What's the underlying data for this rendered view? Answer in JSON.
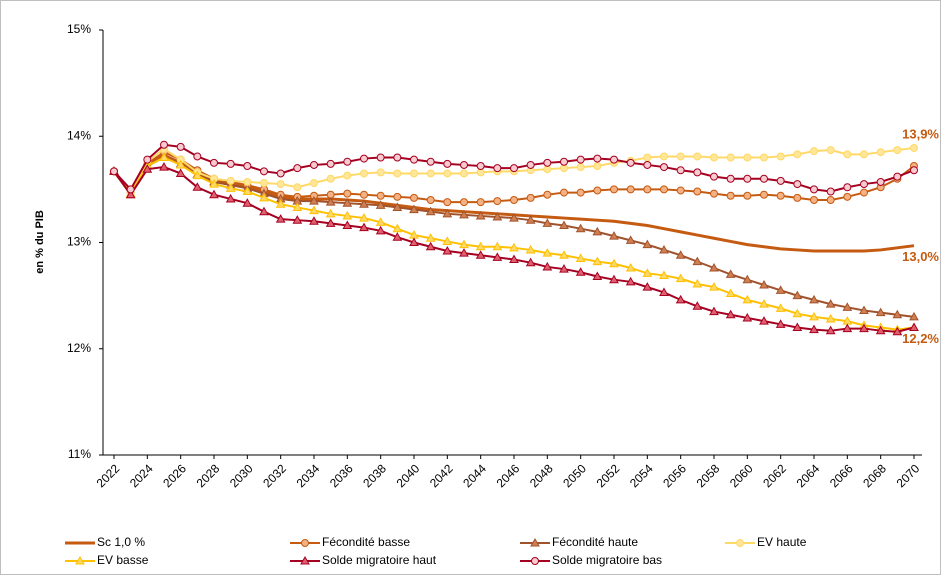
{
  "chart_data": {
    "type": "line",
    "y_label": "en % du PIB",
    "x": [
      2022,
      2023,
      2024,
      2025,
      2026,
      2027,
      2028,
      2029,
      2030,
      2031,
      2032,
      2033,
      2034,
      2035,
      2036,
      2037,
      2038,
      2039,
      2040,
      2041,
      2042,
      2043,
      2044,
      2045,
      2046,
      2047,
      2048,
      2049,
      2050,
      2051,
      2052,
      2053,
      2054,
      2055,
      2056,
      2057,
      2058,
      2059,
      2060,
      2061,
      2062,
      2063,
      2064,
      2065,
      2066,
      2067,
      2068,
      2069,
      2070
    ],
    "xlim": [
      2022,
      2070
    ],
    "xticks": [
      2022,
      2024,
      2026,
      2028,
      2030,
      2032,
      2034,
      2036,
      2038,
      2040,
      2042,
      2044,
      2046,
      2048,
      2050,
      2052,
      2054,
      2056,
      2058,
      2060,
      2062,
      2064,
      2066,
      2068,
      2070
    ],
    "ylim": [
      11,
      15
    ],
    "yticks": [
      {
        "value": 11,
        "label": "11%"
      },
      {
        "value": 12,
        "label": "12%"
      },
      {
        "value": 13,
        "label": "13%"
      },
      {
        "value": 14,
        "label": "14%"
      },
      {
        "value": 15,
        "label": "15%"
      }
    ],
    "grid": false,
    "legend": "bottom",
    "series": [
      {
        "name": "Sc 1,0 %",
        "color": "#C55A11",
        "marker": "none",
        "marker_fill": "#C55A11",
        "values": [
          13.67,
          13.47,
          13.72,
          13.82,
          13.75,
          13.65,
          13.58,
          13.55,
          13.52,
          13.48,
          13.43,
          13.41,
          13.41,
          13.41,
          13.4,
          13.39,
          13.37,
          13.35,
          13.33,
          13.31,
          13.3,
          13.29,
          13.28,
          13.27,
          13.26,
          13.25,
          13.24,
          13.23,
          13.22,
          13.21,
          13.2,
          13.18,
          13.16,
          13.13,
          13.1,
          13.07,
          13.04,
          13.01,
          12.98,
          12.96,
          12.94,
          12.93,
          12.92,
          12.92,
          12.92,
          12.92,
          12.93,
          12.95,
          12.97
        ],
        "value_labels": [
          null,
          null,
          null,
          null,
          null,
          null,
          null,
          null,
          null,
          null,
          null,
          null,
          null,
          null,
          null,
          null,
          null,
          null,
          null,
          null,
          null,
          null,
          null,
          null,
          null,
          null,
          null,
          null,
          null,
          null,
          null,
          null,
          null,
          null,
          null,
          null,
          null,
          null,
          null,
          null,
          null,
          null,
          null,
          null,
          null,
          null,
          null,
          null,
          "13,0%"
        ]
      },
      {
        "name": "Fécondité basse",
        "color": "#C55A11",
        "marker": "circle",
        "marker_fill": "#F4B183",
        "values": [
          13.67,
          13.47,
          13.74,
          13.85,
          13.78,
          13.68,
          13.6,
          13.57,
          13.54,
          13.5,
          13.45,
          13.43,
          13.44,
          13.45,
          13.46,
          13.45,
          13.44,
          13.43,
          13.42,
          13.4,
          13.38,
          13.38,
          13.38,
          13.39,
          13.4,
          13.42,
          13.45,
          13.47,
          13.47,
          13.49,
          13.5,
          13.5,
          13.5,
          13.5,
          13.49,
          13.48,
          13.46,
          13.44,
          13.44,
          13.45,
          13.44,
          13.42,
          13.4,
          13.4,
          13.43,
          13.47,
          13.52,
          13.6,
          13.72
        ]
      },
      {
        "name": "Fécondité haute",
        "color": "#A0522D",
        "marker": "triangle",
        "marker_fill": "#D08050",
        "values": [
          13.67,
          13.45,
          13.72,
          13.8,
          13.74,
          13.64,
          13.57,
          13.54,
          13.51,
          13.46,
          13.41,
          13.39,
          13.39,
          13.38,
          13.37,
          13.36,
          13.35,
          13.33,
          13.31,
          13.29,
          13.27,
          13.26,
          13.25,
          13.24,
          13.23,
          13.21,
          13.18,
          13.16,
          13.13,
          13.1,
          13.06,
          13.02,
          12.98,
          12.93,
          12.88,
          12.82,
          12.76,
          12.7,
          12.65,
          12.6,
          12.55,
          12.5,
          12.46,
          12.42,
          12.39,
          12.36,
          12.34,
          12.32,
          12.3
        ]
      },
      {
        "name": "EV haute",
        "color": "#FFD966",
        "marker": "circle",
        "marker_fill": "#FFE699",
        "values": [
          13.67,
          13.47,
          13.76,
          13.88,
          13.78,
          13.66,
          13.6,
          13.58,
          13.57,
          13.56,
          13.55,
          13.52,
          13.56,
          13.6,
          13.63,
          13.65,
          13.66,
          13.65,
          13.65,
          13.65,
          13.65,
          13.65,
          13.66,
          13.67,
          13.67,
          13.68,
          13.69,
          13.7,
          13.71,
          13.72,
          13.75,
          13.77,
          13.8,
          13.81,
          13.81,
          13.81,
          13.8,
          13.8,
          13.8,
          13.8,
          13.81,
          13.83,
          13.86,
          13.87,
          13.83,
          13.83,
          13.85,
          13.87,
          13.89
        ],
        "value_labels": [
          null,
          null,
          null,
          null,
          null,
          null,
          null,
          null,
          null,
          null,
          null,
          null,
          null,
          null,
          null,
          null,
          null,
          null,
          null,
          null,
          null,
          null,
          null,
          null,
          null,
          null,
          null,
          null,
          null,
          null,
          null,
          null,
          null,
          null,
          null,
          null,
          null,
          null,
          null,
          null,
          null,
          null,
          null,
          null,
          null,
          null,
          null,
          null,
          "13,9%"
        ]
      },
      {
        "name": "EV basse",
        "color": "#FFC000",
        "marker": "triangle",
        "marker_fill": "#FFD966",
        "values": [
          13.67,
          13.46,
          13.72,
          13.8,
          13.73,
          13.63,
          13.55,
          13.51,
          13.48,
          13.42,
          13.36,
          13.33,
          13.3,
          13.27,
          13.25,
          13.23,
          13.19,
          13.13,
          13.07,
          13.04,
          13.01,
          12.98,
          12.96,
          12.96,
          12.95,
          12.93,
          12.9,
          12.88,
          12.85,
          12.82,
          12.8,
          12.76,
          12.71,
          12.69,
          12.66,
          12.61,
          12.58,
          12.52,
          12.46,
          12.42,
          12.38,
          12.33,
          12.3,
          12.28,
          12.26,
          12.22,
          12.2,
          12.18,
          12.2
        ],
        "value_labels": [
          null,
          null,
          null,
          null,
          null,
          null,
          null,
          null,
          null,
          null,
          null,
          null,
          null,
          null,
          null,
          null,
          null,
          null,
          null,
          null,
          null,
          null,
          null,
          null,
          null,
          null,
          null,
          null,
          null,
          null,
          null,
          null,
          null,
          null,
          null,
          null,
          null,
          null,
          null,
          null,
          null,
          null,
          null,
          null,
          null,
          null,
          null,
          null,
          "12,2%"
        ]
      },
      {
        "name": "Solde migratoire haut",
        "color": "#A50021",
        "marker": "triangle",
        "marker_fill": "#E06070",
        "values": [
          13.67,
          13.45,
          13.69,
          13.71,
          13.65,
          13.52,
          13.45,
          13.41,
          13.37,
          13.29,
          13.22,
          13.21,
          13.2,
          13.18,
          13.16,
          13.14,
          13.11,
          13.05,
          13.0,
          12.96,
          12.92,
          12.9,
          12.88,
          12.86,
          12.84,
          12.81,
          12.77,
          12.75,
          12.72,
          12.68,
          12.65,
          12.63,
          12.58,
          12.53,
          12.46,
          12.4,
          12.35,
          12.32,
          12.29,
          12.26,
          12.23,
          12.2,
          12.18,
          12.17,
          12.19,
          12.19,
          12.17,
          12.16,
          12.2
        ]
      },
      {
        "name": "Solde migratoire bas",
        "color": "#A50021",
        "marker": "circle",
        "marker_fill": "#F8CBD0",
        "values": [
          13.67,
          13.5,
          13.78,
          13.92,
          13.9,
          13.81,
          13.75,
          13.74,
          13.72,
          13.67,
          13.65,
          13.7,
          13.73,
          13.74,
          13.76,
          13.79,
          13.8,
          13.8,
          13.78,
          13.76,
          13.74,
          13.73,
          13.72,
          13.7,
          13.7,
          13.73,
          13.75,
          13.76,
          13.78,
          13.79,
          13.78,
          13.75,
          13.73,
          13.71,
          13.68,
          13.66,
          13.62,
          13.6,
          13.6,
          13.6,
          13.58,
          13.55,
          13.5,
          13.48,
          13.52,
          13.55,
          13.57,
          13.62,
          13.68
        ]
      }
    ]
  }
}
